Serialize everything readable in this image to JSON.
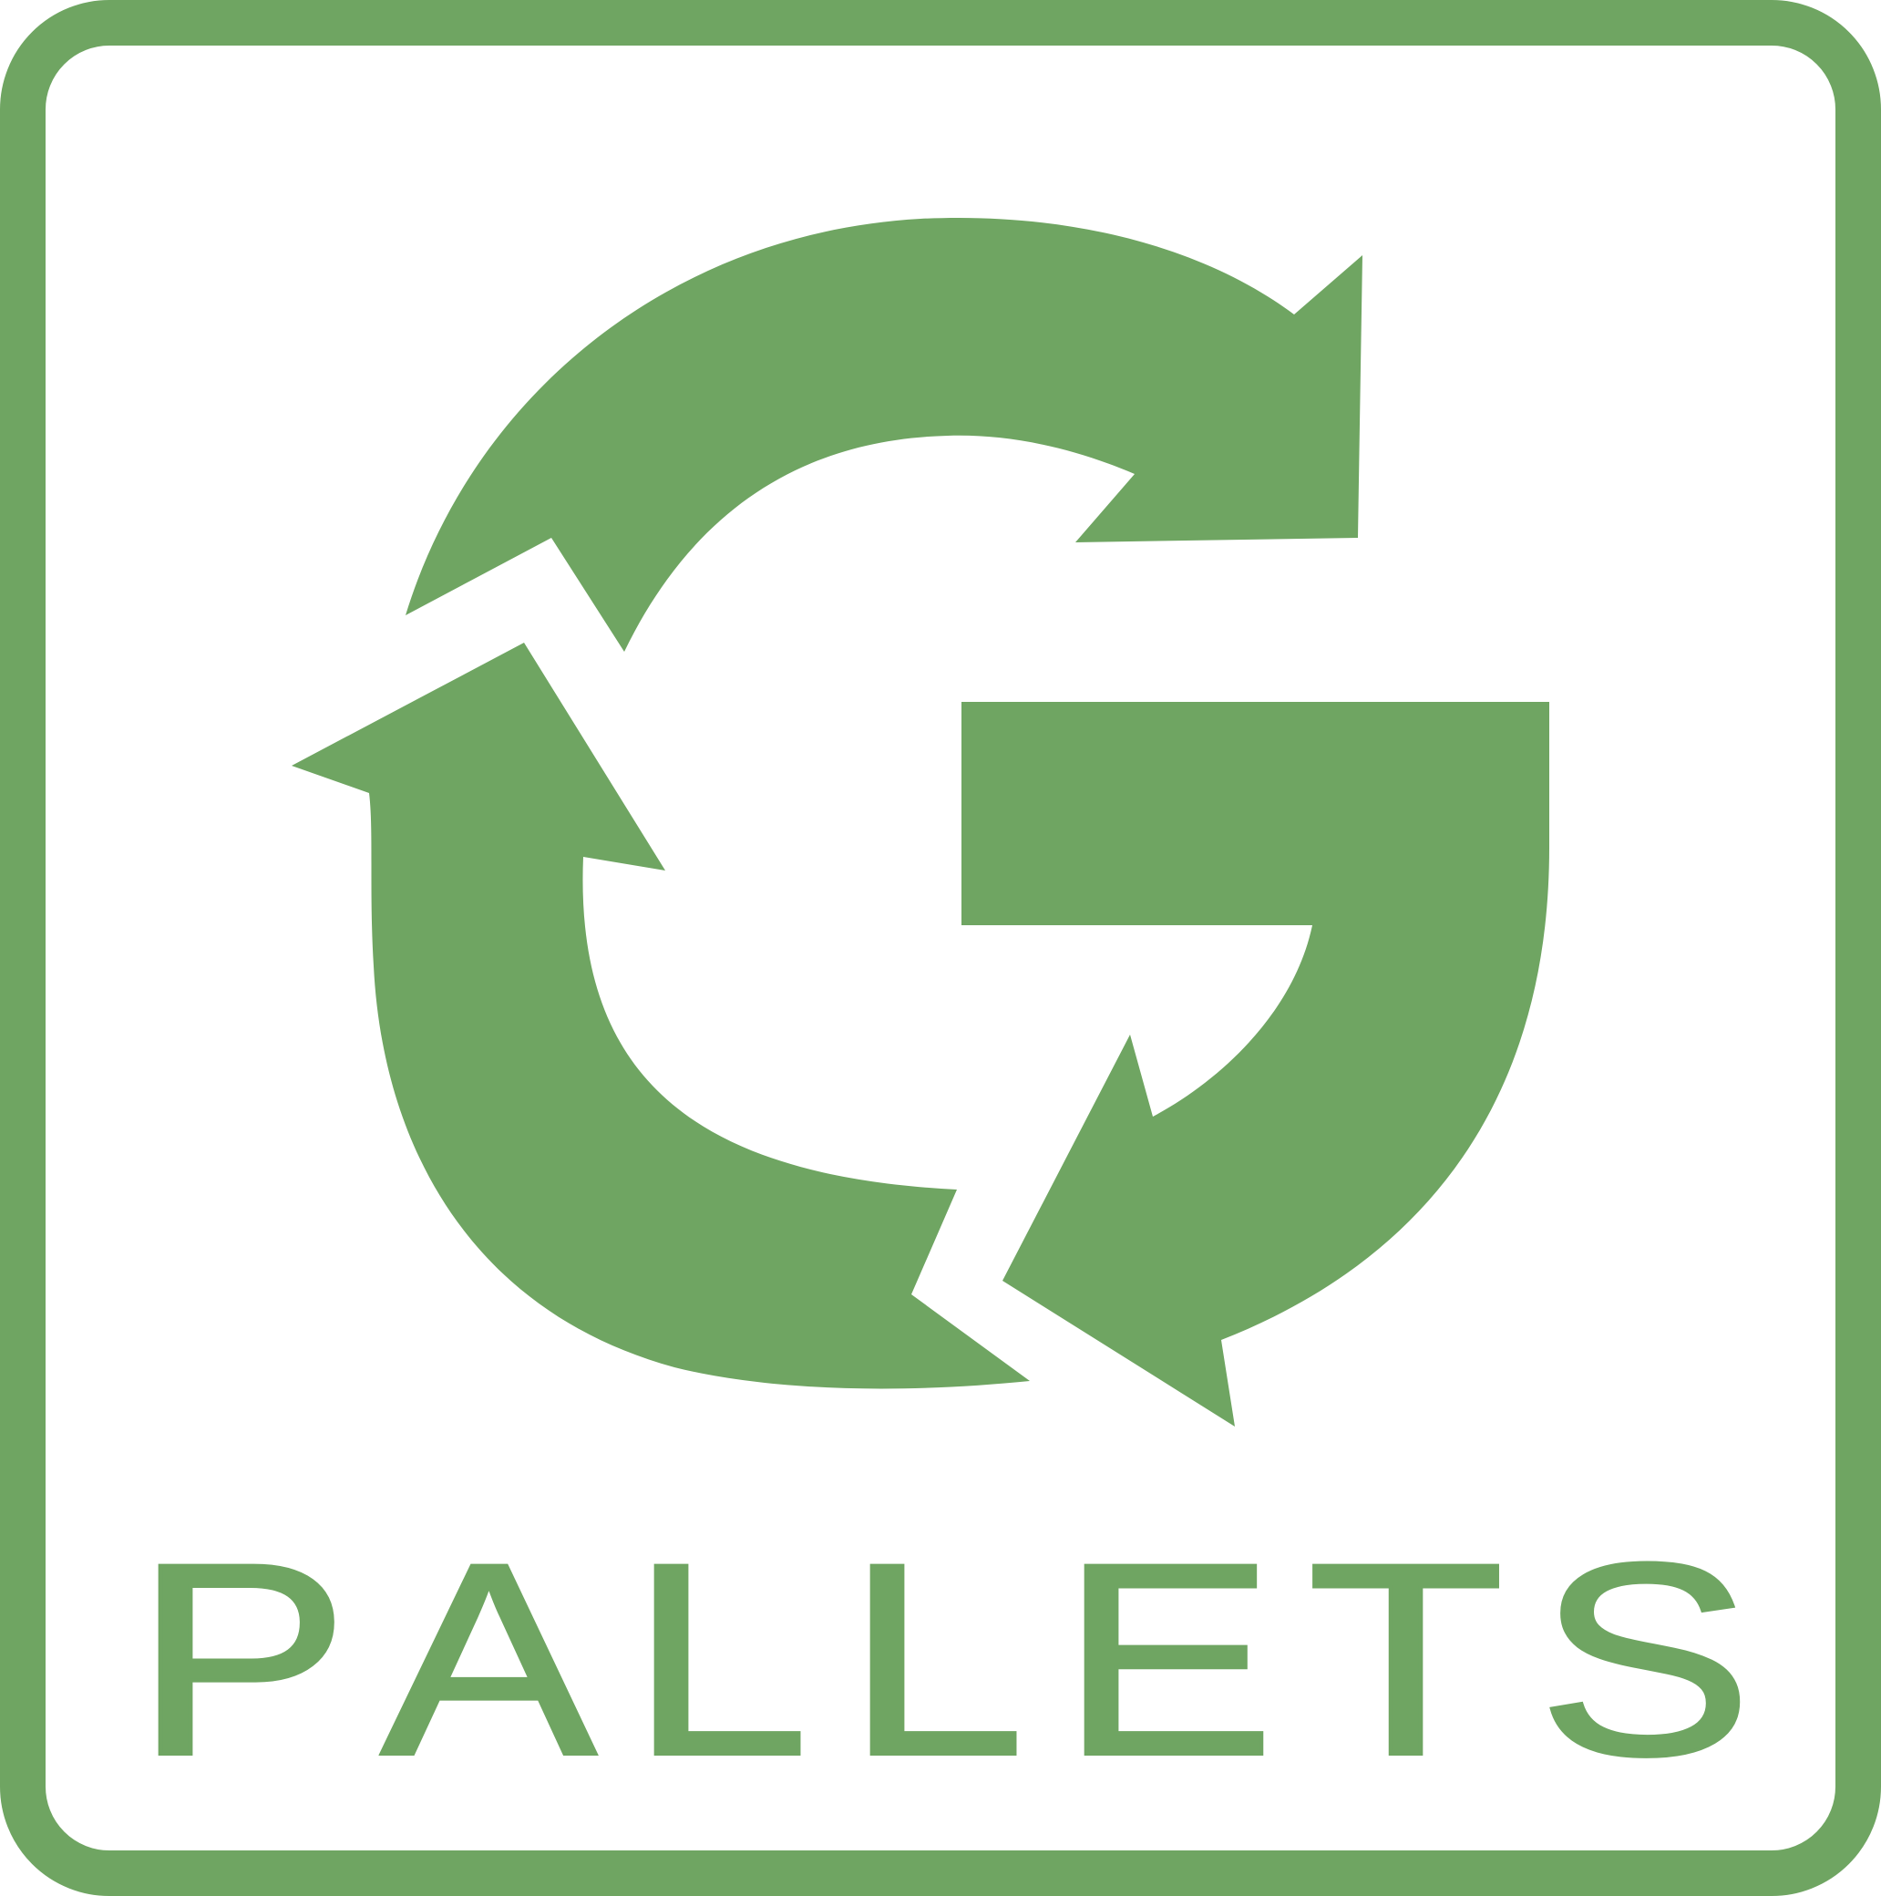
{
  "logo": {
    "wordmark": "PALLETS",
    "letters": [
      "P",
      "A",
      "L",
      "L",
      "E",
      "T",
      "S"
    ],
    "icon": "recycling-arrows-g-icon",
    "colors": {
      "brand_green": "#6fa562",
      "background": "#ffffff"
    }
  }
}
